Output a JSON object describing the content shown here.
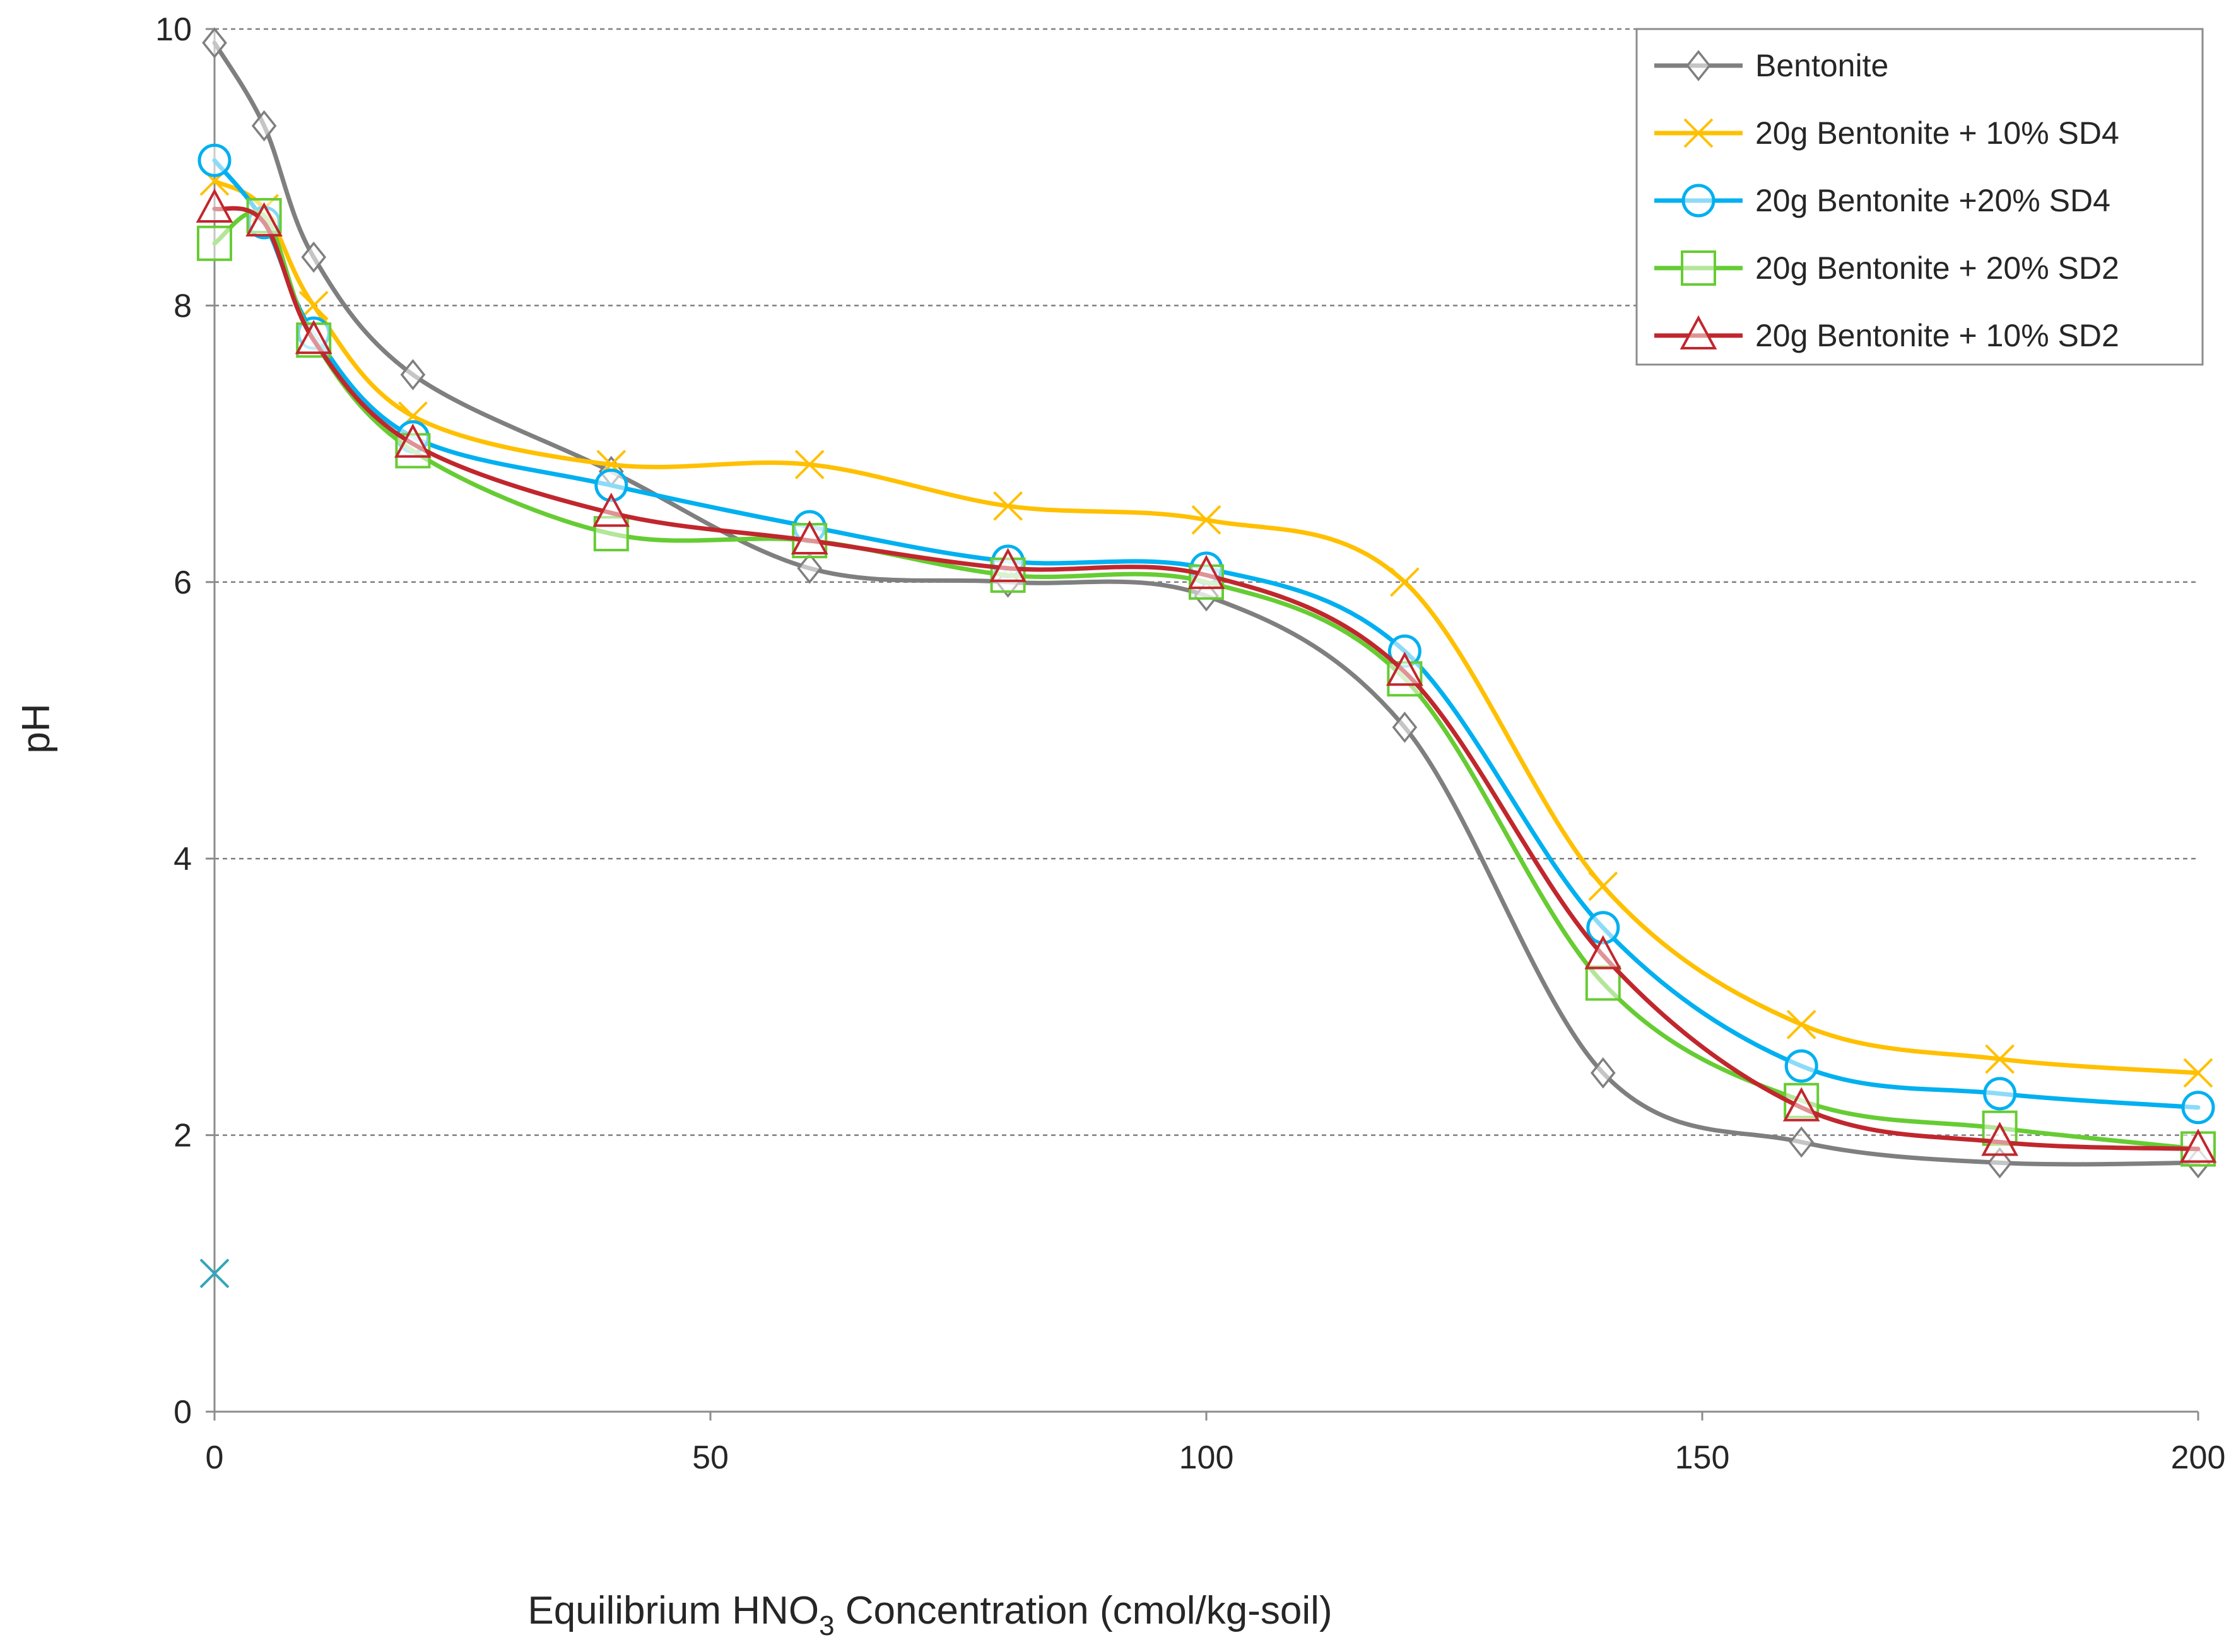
{
  "chart_data": {
    "type": "line",
    "title": "",
    "xlabel_parts": [
      "Equilibrium HNO",
      "3",
      " Concentration (cmol/kg-soil)"
    ],
    "ylabel": "pH",
    "xlim": [
      0,
      200
    ],
    "ylim": [
      0,
      10
    ],
    "xticks": [
      "0",
      "50",
      "100",
      "150",
      "200"
    ],
    "yticks": [
      "0",
      "2",
      "4",
      "6",
      "8",
      "10"
    ],
    "grid": "horizontal-dashed",
    "legend_position": "top-right",
    "series": [
      {
        "name": "Bentonite",
        "color": "#7f7f7f",
        "marker": "diamond",
        "x": [
          0,
          5,
          10,
          20,
          40,
          60,
          80,
          100,
          120,
          140,
          160,
          180,
          200
        ],
        "y": [
          9.9,
          9.3,
          8.35,
          7.5,
          6.8,
          6.1,
          6.0,
          5.9,
          4.95,
          2.45,
          1.95,
          1.8,
          1.8
        ]
      },
      {
        "name": "20g Bentonite + 10% SD4",
        "color": "#ffc000",
        "marker": "x",
        "x": [
          0,
          5,
          10,
          20,
          40,
          60,
          80,
          100,
          120,
          140,
          160,
          180,
          200
        ],
        "y": [
          8.9,
          8.7,
          8.0,
          7.2,
          6.85,
          6.85,
          6.55,
          6.45,
          6.0,
          3.8,
          2.8,
          2.55,
          2.45
        ]
      },
      {
        "name": "20g Bentonite +20% SD4",
        "color": "#00b0f0",
        "marker": "circle",
        "x": [
          0,
          5,
          10,
          20,
          40,
          60,
          80,
          100,
          120,
          140,
          160,
          180,
          200
        ],
        "y": [
          9.05,
          8.6,
          7.8,
          7.05,
          6.7,
          6.4,
          6.15,
          6.1,
          5.5,
          3.5,
          2.5,
          2.3,
          2.2
        ]
      },
      {
        "name": "20g Bentonite + 20% SD2",
        "color": "#66cc33",
        "marker": "square",
        "x": [
          0,
          5,
          10,
          20,
          40,
          60,
          80,
          100,
          120,
          140,
          160,
          180,
          200
        ],
        "y": [
          8.45,
          8.65,
          7.75,
          6.95,
          6.35,
          6.3,
          6.05,
          6.0,
          5.3,
          3.1,
          2.25,
          2.05,
          1.9
        ]
      },
      {
        "name": "20g Bentonite + 10% SD2",
        "color": "#c0272d",
        "marker": "triangle",
        "x": [
          0,
          5,
          10,
          20,
          40,
          60,
          80,
          100,
          120,
          140,
          160,
          180,
          200
        ],
        "y": [
          8.7,
          8.6,
          7.75,
          7.0,
          6.5,
          6.3,
          6.1,
          6.05,
          5.35,
          3.3,
          2.2,
          1.95,
          1.9
        ]
      }
    ],
    "extra_points": [
      {
        "name": "stray marker",
        "color": "#31a6b8",
        "marker": "x",
        "x": 0,
        "y": 1.0
      }
    ]
  }
}
